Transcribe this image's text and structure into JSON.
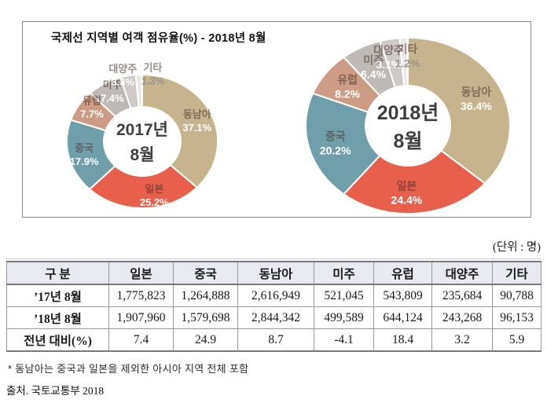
{
  "unit_label": "(단위 : 명)",
  "footnote": "* 동남아는 중국과 일본을 제외한 아시아 지역 전체 포함",
  "source": "출처. 국토교통부 2018",
  "chart_data": {
    "type": "pie",
    "subtype": "donut-pair",
    "title": "국제선 지역별 여객 점유율(%) - 2018년 8월",
    "legend_position": "none",
    "start_angle": "top",
    "direction": "clockwise",
    "donuts": [
      {
        "center_label": [
          "2017년",
          "8월"
        ],
        "slices": [
          {
            "name": "동남아",
            "value": 37.1,
            "color": "#C6B48D"
          },
          {
            "name": "일본",
            "value": 25.2,
            "color": "#E8604B",
            "ldx": 14
          },
          {
            "name": "중국",
            "value": 17.9,
            "color": "#6FA0A9"
          },
          {
            "name": "유럽",
            "value": 7.7,
            "color": "#CE9B84",
            "ldy": -8
          },
          {
            "name": "미주",
            "value": 7.4,
            "color": "#BFBAB6",
            "ldy": -6
          },
          {
            "name": "대양주",
            "value": 3.3,
            "color": "#CFCAC7",
            "lr": 1.02,
            "ldx": -6
          },
          {
            "name": "기타",
            "value": 1.3,
            "color": "#EBE9E7",
            "lr": 1.02,
            "ldx": 18
          }
        ]
      },
      {
        "center_label": [
          "2018년",
          "8월"
        ],
        "slices": [
          {
            "name": "동남아",
            "value": 36.4,
            "color": "#C6B48D"
          },
          {
            "name": "일본",
            "value": 24.4,
            "color": "#E8604B",
            "ldx": -10
          },
          {
            "name": "중국",
            "value": 20.2,
            "color": "#6FA0A9"
          },
          {
            "name": "유럽",
            "value": 8.2,
            "color": "#CE9B84"
          },
          {
            "name": "미주",
            "value": 6.4,
            "color": "#BFBAB6"
          },
          {
            "name": "대양주",
            "value": 3.1,
            "color": "#CFCAC7",
            "lr": 0.8,
            "ldx": -6
          },
          {
            "name": "기타",
            "value": 1.2,
            "color": "#EBE9E7",
            "lr": 0.8,
            "ldx": 4
          }
        ]
      }
    ]
  },
  "table": {
    "headers": [
      "구 분",
      "일본",
      "중국",
      "동남아",
      "미주",
      "유럽",
      "대양주",
      "기타"
    ],
    "rows": [
      {
        "label": "’17년 8월",
        "values": [
          "1,775,823",
          "1,264,888",
          "2,616,949",
          "521,045",
          "543,809",
          "235,684",
          "90,788"
        ]
      },
      {
        "label": "’18년 8월",
        "values": [
          "1,907,960",
          "1,579,698",
          "2,844,342",
          "499,589",
          "644,124",
          "243,268",
          "96,153"
        ]
      },
      {
        "label": "전년 대비(%)",
        "values": [
          "7.4",
          "24.9",
          "8.7",
          "-4.1",
          "18.4",
          "3.2",
          "5.9"
        ]
      }
    ]
  }
}
